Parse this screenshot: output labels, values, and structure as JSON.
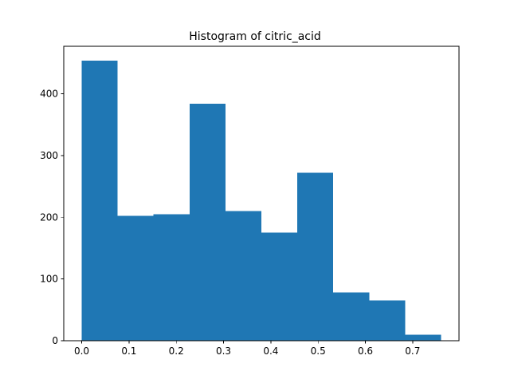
{
  "chart_data": {
    "type": "bar",
    "title": "Histogram of citric_acid",
    "xlabel": "",
    "ylabel": "",
    "bin_edges": [
      0.0,
      0.076,
      0.152,
      0.228,
      0.304,
      0.38,
      0.456,
      0.532,
      0.608,
      0.684,
      0.76
    ],
    "values": [
      454,
      202,
      205,
      384,
      210,
      175,
      272,
      78,
      65,
      10
    ],
    "xlim": [
      -0.038,
      0.798
    ],
    "ylim": [
      0,
      477
    ],
    "xticks": [
      0.0,
      0.1,
      0.2,
      0.3,
      0.4,
      0.5,
      0.6,
      0.7
    ],
    "xtick_labels": [
      "0.0",
      "0.1",
      "0.2",
      "0.3",
      "0.4",
      "0.5",
      "0.6",
      "0.7"
    ],
    "yticks": [
      0,
      100,
      200,
      300,
      400
    ],
    "ytick_labels": [
      "0",
      "100",
      "200",
      "300",
      "400"
    ],
    "bar_color": "#1f77b4",
    "grid": false,
    "legend": "none"
  }
}
